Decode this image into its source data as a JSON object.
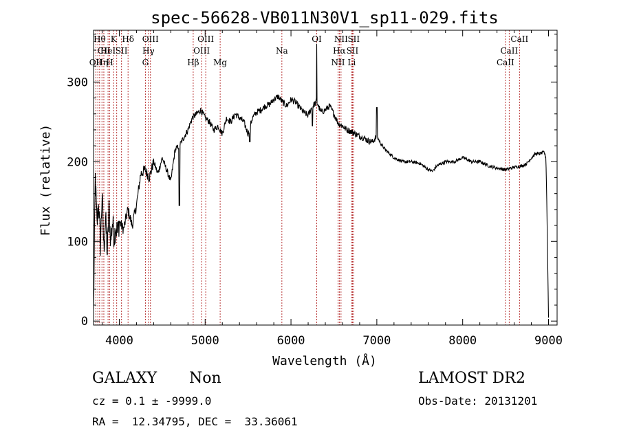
{
  "chart_data": {
    "type": "line",
    "title": "spec-56628-VB011N30V1_sp11-029.fits",
    "xlabel": "Wavelength (Å)",
    "ylabel": "Flux (relative)",
    "xlim": [
      3700,
      9100
    ],
    "ylim": [
      -5,
      365
    ],
    "xticks": [
      4000,
      5000,
      6000,
      7000,
      8000,
      9000
    ],
    "yticks": [
      0,
      100,
      200,
      300
    ],
    "grid": false,
    "line_color": "#000000",
    "marker_color": "#b22222",
    "series": [
      {
        "x": [
          3700,
          3720,
          3740,
          3760,
          3780,
          3800,
          3820,
          3840,
          3860,
          3880,
          3900,
          3920,
          3940,
          3960,
          3980,
          4000,
          4050,
          4100,
          4150,
          4200,
          4250,
          4300,
          4350,
          4400,
          4450,
          4500,
          4550,
          4600,
          4650,
          4700,
          4750,
          4800,
          4850,
          4900,
          4950,
          5000,
          5050,
          5100,
          5150,
          5200,
          5250,
          5300,
          5350,
          5400,
          5450,
          5500,
          5550,
          5600,
          5650,
          5700,
          5750,
          5800,
          5850,
          5900,
          5950,
          6000,
          6050,
          6100,
          6150,
          6200,
          6250,
          6300,
          6350,
          6400,
          6450,
          6500,
          6550,
          6600,
          6650,
          6700,
          6750,
          6800,
          6850,
          6900,
          6950,
          7000,
          7050,
          7100,
          7150,
          7200,
          7300,
          7400,
          7500,
          7600,
          7650,
          7700,
          7800,
          7900,
          8000,
          8050,
          8100,
          8200,
          8300,
          8400,
          8500,
          8600,
          8650,
          8700,
          8750,
          8800,
          8850,
          8900,
          8950,
          8970,
          8980,
          8990,
          9000
        ],
        "y": [
          10,
          180,
          120,
          150,
          95,
          160,
          90,
          130,
          85,
          140,
          100,
          125,
          105,
          120,
          110,
          125,
          115,
          140,
          120,
          145,
          185,
          190,
          180,
          200,
          185,
          205,
          190,
          175,
          215,
          220,
          230,
          240,
          255,
          260,
          265,
          255,
          250,
          240,
          245,
          235,
          255,
          250,
          260,
          255,
          250,
          235,
          255,
          262,
          265,
          270,
          272,
          278,
          282,
          275,
          270,
          278,
          275,
          268,
          262,
          258,
          270,
          275,
          262,
          265,
          270,
          260,
          248,
          245,
          240,
          238,
          235,
          232,
          230,
          226,
          225,
          232,
          222,
          215,
          210,
          205,
          200,
          200,
          198,
          190,
          188,
          195,
          200,
          200,
          205,
          203,
          200,
          200,
          195,
          192,
          190,
          193,
          194,
          195,
          198,
          205,
          210,
          210,
          212,
          205,
          150,
          80,
          5
        ]
      }
    ],
    "lines": [
      {
        "w": 3727,
        "labels": [
          {
            "text": "OII",
            "row": 3
          }
        ]
      },
      {
        "w": 3750,
        "labels": []
      },
      {
        "w": 3771,
        "labels": [
          {
            "text": "Hθ",
            "row": 1
          }
        ]
      },
      {
        "w": 3798,
        "labels": [
          {
            "text": "Hη",
            "row": 3
          }
        ]
      },
      {
        "w": 3820,
        "labels": [
          {
            "text": "CII",
            "row": 2
          }
        ]
      },
      {
        "w": 3869,
        "labels": [
          {
            "text": "HeI",
            "row": 2
          }
        ]
      },
      {
        "w": 3889,
        "labels": [
          {
            "text": "H",
            "row": 3
          }
        ]
      },
      {
        "w": 3934,
        "labels": [
          {
            "text": "K",
            "row": 1
          }
        ]
      },
      {
        "w": 3970,
        "labels": []
      },
      {
        "w": 4026,
        "labels": [
          {
            "text": "SII",
            "row": 2
          }
        ]
      },
      {
        "w": 4102,
        "labels": [
          {
            "text": "Hδ",
            "row": 1
          }
        ]
      },
      {
        "w": 4304,
        "labels": [
          {
            "text": "G",
            "row": 3
          }
        ]
      },
      {
        "w": 4340,
        "labels": [
          {
            "text": "Hγ",
            "row": 2
          }
        ]
      },
      {
        "w": 4363,
        "labels": [
          {
            "text": "OIII",
            "row": 1
          }
        ]
      },
      {
        "w": 4861,
        "labels": [
          {
            "text": "Hβ",
            "row": 3
          }
        ]
      },
      {
        "w": 4959,
        "labels": [
          {
            "text": "OIII",
            "row": 2
          }
        ]
      },
      {
        "w": 5007,
        "labels": [
          {
            "text": "OIII",
            "row": 1
          }
        ]
      },
      {
        "w": 5175,
        "labels": [
          {
            "text": "Mg",
            "row": 3
          }
        ]
      },
      {
        "w": 5894,
        "labels": [
          {
            "text": "Na",
            "row": 2
          }
        ]
      },
      {
        "w": 6300,
        "labels": [
          {
            "text": "OI",
            "row": 1
          }
        ]
      },
      {
        "w": 6548,
        "labels": [
          {
            "text": "NII",
            "row": 3
          }
        ]
      },
      {
        "w": 6563,
        "labels": [
          {
            "text": "Hα",
            "row": 2
          }
        ]
      },
      {
        "w": 6583,
        "labels": [
          {
            "text": "NII",
            "row": 1
          }
        ]
      },
      {
        "w": 6707,
        "labels": [
          {
            "text": "Li",
            "row": 3
          }
        ]
      },
      {
        "w": 6716,
        "labels": [
          {
            "text": "SII",
            "row": 2
          }
        ]
      },
      {
        "w": 6731,
        "labels": [
          {
            "text": "SII",
            "row": 1
          }
        ]
      },
      {
        "w": 8498,
        "labels": [
          {
            "text": "CaII",
            "row": 3
          }
        ]
      },
      {
        "w": 8542,
        "labels": [
          {
            "text": "CaII",
            "row": 2
          }
        ]
      },
      {
        "w": 8662,
        "labels": [
          {
            "text": "CaII",
            "row": 1
          }
        ]
      }
    ]
  },
  "info": {
    "class": "GALAXY",
    "subclass": "Non",
    "survey": "LAMOST DR2",
    "cz": "cz = 0.1 ± -9999.0",
    "obsdate": "Obs-Date: 20131201",
    "radec": "RA =  12.34795, DEC =  33.36061"
  }
}
